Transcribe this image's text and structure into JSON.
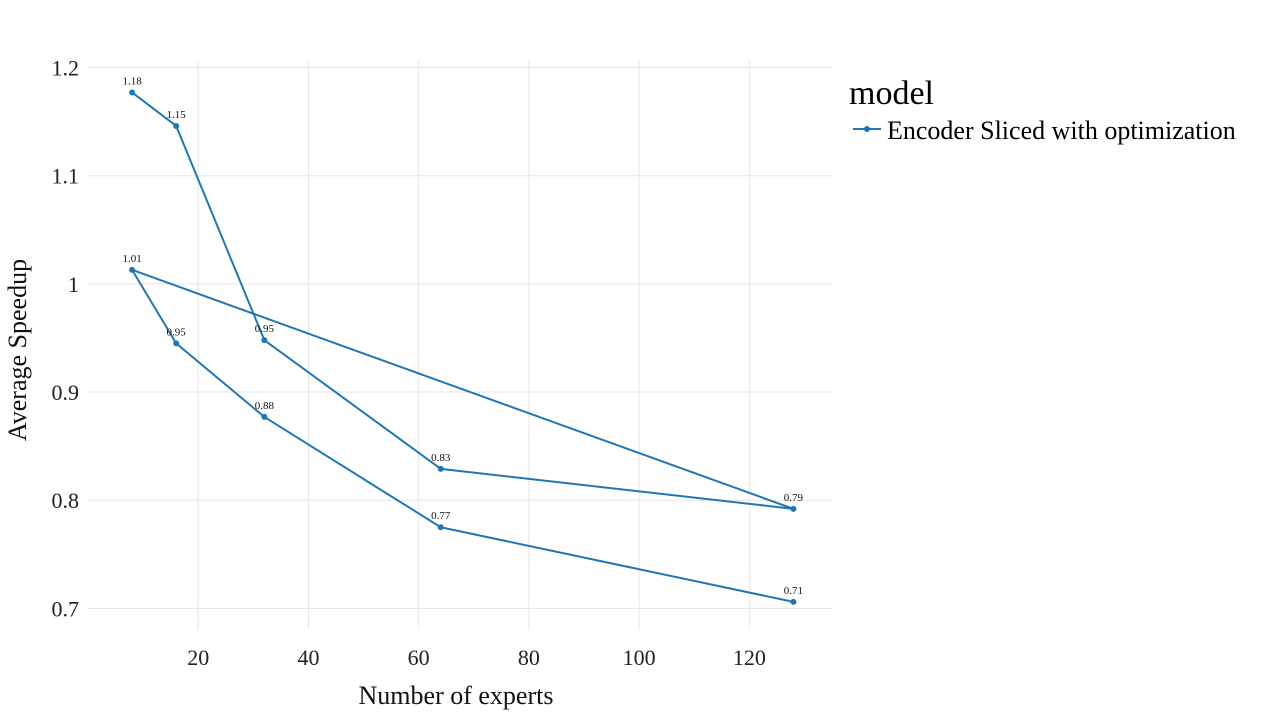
{
  "chart_data": {
    "type": "line",
    "xlabel": "Number of experts",
    "ylabel": "Average Speedup",
    "xlim": [
      0,
      135
    ],
    "ylim": [
      0.68,
      1.207
    ],
    "xticks": [
      20,
      40,
      60,
      80,
      100,
      120
    ],
    "yticks": [
      0.7,
      0.8,
      0.9,
      1,
      1.1,
      1.2
    ],
    "xtick_labels": [
      "20",
      "40",
      "60",
      "80",
      "100",
      "120"
    ],
    "ytick_labels": [
      "0.7",
      "0.8",
      "0.9",
      "1",
      "1.1",
      "1.2"
    ],
    "grid": true,
    "legend": {
      "title": "model",
      "position": "top-right"
    },
    "series": [
      {
        "name": "Encoder Sliced with optimization",
        "color": "#1f77b4",
        "x": [
          8,
          16,
          32,
          64,
          128,
          8,
          16,
          32,
          64,
          128
        ],
        "y": [
          1.177,
          1.146,
          0.948,
          0.829,
          0.792,
          1.013,
          0.945,
          0.877,
          0.775,
          0.706
        ],
        "labels": [
          "1.18",
          "1.15",
          "0.95",
          "0.83",
          "0.79",
          "1.01",
          "0.95",
          "0.88",
          "0.77",
          "0.71"
        ]
      }
    ]
  }
}
